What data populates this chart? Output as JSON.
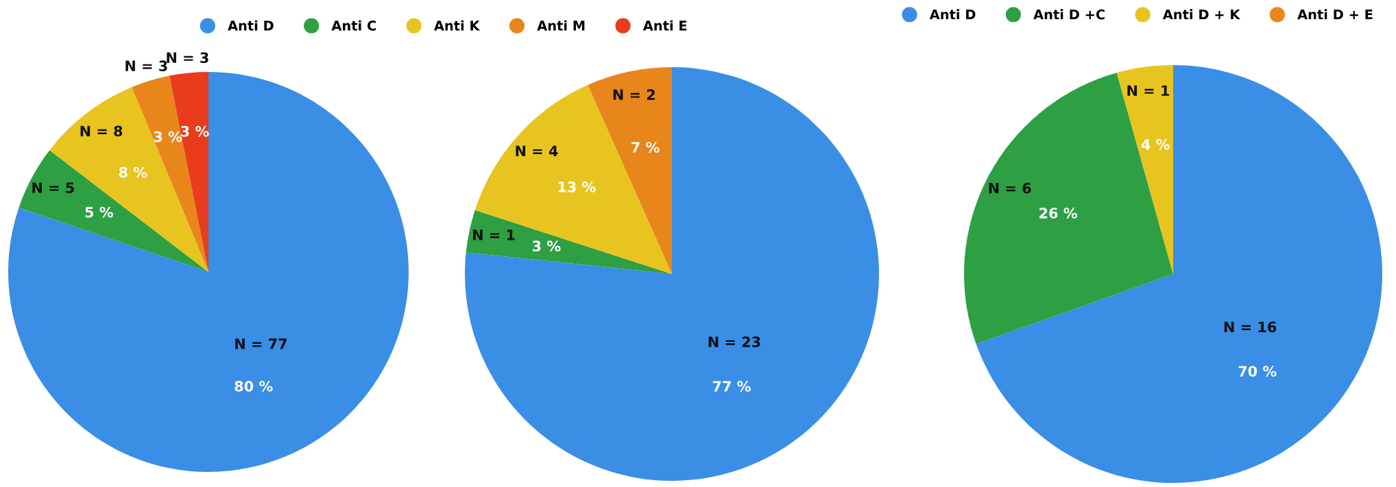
{
  "chart_data": [
    {
      "type": "pie",
      "categories": [
        "Anti D",
        "Anti C",
        "Anti K",
        "Anti M",
        "Anti E"
      ],
      "values": [
        77,
        5,
        8,
        3,
        3
      ],
      "colors": [
        "#3a8ee6",
        "#2ea043",
        "#e8c420",
        "#e8861c",
        "#e83c1c"
      ],
      "value_labels": [
        "N = 77",
        "N = 5",
        "N = 8",
        "N = 3",
        "N = 3"
      ],
      "annotations": [
        {
          "text": "80 %",
          "x": "Anti D"
        },
        {
          "text": "5 %",
          "x": "Anti C"
        },
        {
          "text": "8 %",
          "x": "Anti K"
        },
        {
          "text": "3 %",
          "x": "Anti M"
        },
        {
          "text": "3 %",
          "x": "Anti E"
        }
      ],
      "legend": "top"
    },
    {
      "type": "pie",
      "categories": [
        null,
        null,
        null,
        null
      ],
      "values": [
        23,
        1,
        4,
        2
      ],
      "colors": [
        "#3a8ee6",
        "#2ea043",
        "#e8c420",
        "#e8861c"
      ],
      "value_labels": [
        "N = 23",
        "N = 1",
        "N = 4",
        "N = 2"
      ],
      "annotations": [
        {
          "text": "77 %"
        },
        {
          "text": "3 %"
        },
        {
          "text": "13 %"
        },
        {
          "text": "7 %"
        }
      ]
    },
    {
      "type": "pie",
      "categories": [
        "Anti D",
        "Anti D +C",
        "Anti D + K",
        "Anti D + E"
      ],
      "values": [
        16,
        6,
        1,
        0
      ],
      "colors": [
        "#3a8ee6",
        "#2ea043",
        "#e8c420",
        "#e8861c"
      ],
      "value_labels": [
        "N = 16",
        "N = 6",
        "N = 1",
        null
      ],
      "annotations": [
        {
          "text": "70 %",
          "x": "Anti D"
        },
        {
          "text": "26 %",
          "x": "Anti D +C"
        },
        {
          "text": "4 %",
          "x": "Anti D + K"
        }
      ],
      "legend": "top"
    }
  ]
}
